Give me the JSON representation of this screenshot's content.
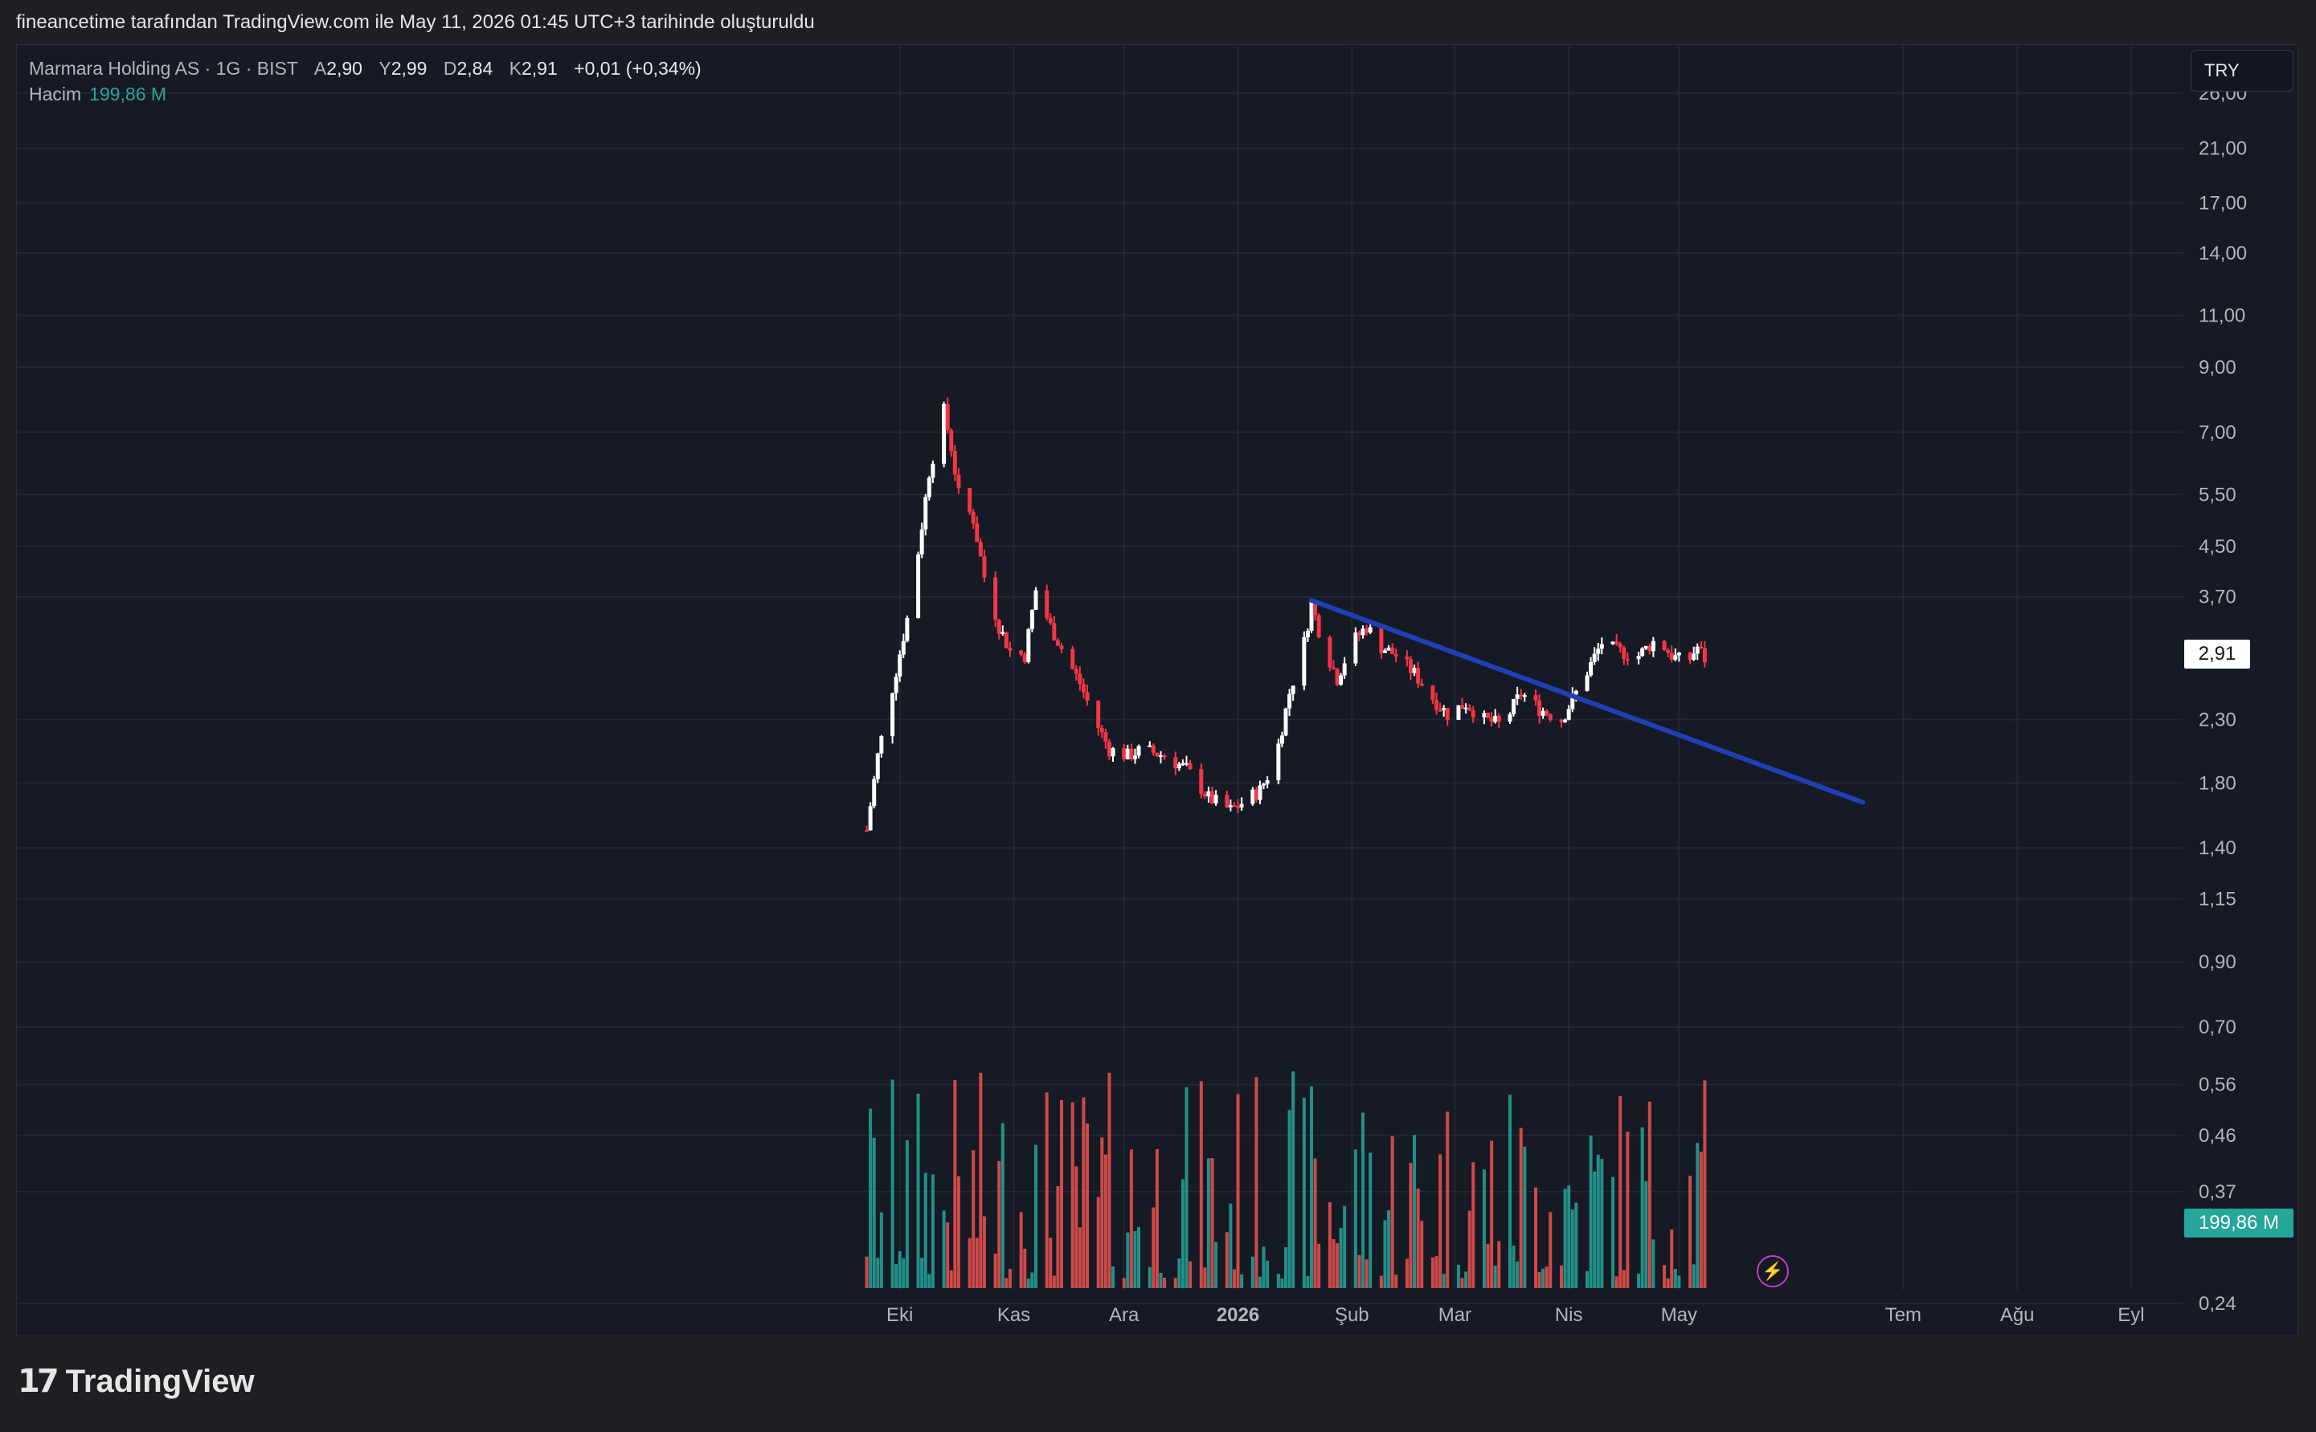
{
  "header": {
    "caption": "fineancetime tarafından TradingView.com ile May 11, 2026 01:45 UTC+3 tarihinde oluşturuldu"
  },
  "legend": {
    "symbol": "Marmara Holding AS · 1G · BIST",
    "open_label": "A",
    "open": "2,90",
    "high_label": "Y",
    "high": "2,99",
    "low_label": "D",
    "low": "2,84",
    "close_label": "K",
    "close": "2,91",
    "change": "+0,01 (+0,34%)",
    "volume_label": "Hacim",
    "volume": "199,86 M"
  },
  "currency": "TRY",
  "last_price_label": "2,91",
  "last_volume_label": "199,86 M",
  "footer": {
    "logo_text": "TradingView"
  },
  "colors": {
    "background": "#161a25",
    "up": "#ffffff",
    "down": "#f23645",
    "volume_up": "#26a69a",
    "volume_down": "#ef5350",
    "trendline": "#1f3fb5",
    "grid": "#232734",
    "axis_text": "#b2b5be"
  },
  "icons": [
    "bolt-icon",
    "tradingview-logo-icon"
  ],
  "chart_data": {
    "type": "candlestick",
    "scale": "log",
    "y_ticks": [
      "26,00",
      "21,00",
      "17,00",
      "14,00",
      "11,00",
      "9,00",
      "7,00",
      "5,50",
      "4,50",
      "3,70",
      "2,30",
      "1,80",
      "1,40",
      "1,15",
      "0,90",
      "0,70",
      "0,56",
      "0,46",
      "0,37",
      "0,24"
    ],
    "y_tick_values": [
      26,
      21,
      17,
      14,
      11,
      9,
      7,
      5.5,
      4.5,
      3.7,
      2.3,
      1.8,
      1.4,
      1.15,
      0.9,
      0.7,
      0.56,
      0.46,
      0.37,
      0.24
    ],
    "x_ticks": [
      "Eki",
      "Kas",
      "Ara",
      "2026",
      "Şub",
      "Mar",
      "Nis",
      "May",
      "Tem",
      "Ağu",
      "Eyl"
    ],
    "x_tick_dates": [
      "2025-10-01",
      "2025-11-01",
      "2025-12-01",
      "2026-01-01",
      "2026-02-01",
      "2026-03-01",
      "2026-04-01",
      "2026-05-01",
      "2026-07-01",
      "2026-08-01",
      "2026-09-01"
    ],
    "x_range": [
      "2025-02-03",
      "2026-09-15"
    ],
    "y_range": [
      0.22,
      30
    ],
    "price_path": [
      [
        "2025-09-22",
        1.5
      ],
      [
        "2025-09-25",
        2.0
      ],
      [
        "2025-09-29",
        2.6
      ],
      [
        "2025-10-03",
        3.4
      ],
      [
        "2025-10-06",
        4.4
      ],
      [
        "2025-10-09",
        6.0
      ],
      [
        "2025-10-13",
        7.6
      ],
      [
        "2025-10-15",
        6.6
      ],
      [
        "2025-10-17",
        5.5
      ],
      [
        "2025-10-21",
        5.0
      ],
      [
        "2025-10-24",
        4.0
      ],
      [
        "2025-10-28",
        3.3
      ],
      [
        "2025-10-31",
        3.0
      ],
      [
        "2025-11-04",
        2.95
      ],
      [
        "2025-11-07",
        3.8
      ],
      [
        "2025-11-11",
        3.3
      ],
      [
        "2025-11-15",
        2.95
      ],
      [
        "2025-11-19",
        2.65
      ],
      [
        "2025-11-23",
        2.3
      ],
      [
        "2025-11-27",
        2.05
      ],
      [
        "2025-12-02",
        2.0
      ],
      [
        "2025-12-06",
        2.05
      ],
      [
        "2025-12-12",
        2.0
      ],
      [
        "2025-12-18",
        1.9
      ],
      [
        "2025-12-24",
        1.7
      ],
      [
        "2025-12-30",
        1.62
      ],
      [
        "2026-01-03",
        1.68
      ],
      [
        "2026-01-07",
        1.75
      ],
      [
        "2026-01-11",
        1.95
      ],
      [
        "2026-01-15",
        2.55
      ],
      [
        "2026-01-19",
        3.1
      ],
      [
        "2026-01-21",
        3.6
      ],
      [
        "2026-01-24",
        3.1
      ],
      [
        "2026-01-28",
        2.7
      ],
      [
        "2026-02-01",
        3.1
      ],
      [
        "2026-02-05",
        3.3
      ],
      [
        "2026-02-09",
        3.05
      ],
      [
        "2026-02-13",
        2.95
      ],
      [
        "2026-02-18",
        2.75
      ],
      [
        "2026-02-23",
        2.5
      ],
      [
        "2026-02-27",
        2.35
      ],
      [
        "2026-03-04",
        2.45
      ],
      [
        "2026-03-09",
        2.3
      ],
      [
        "2026-03-14",
        2.25
      ],
      [
        "2026-03-19",
        2.55
      ],
      [
        "2026-03-24",
        2.4
      ],
      [
        "2026-03-30",
        2.3
      ],
      [
        "2026-04-03",
        2.55
      ],
      [
        "2026-04-07",
        2.85
      ],
      [
        "2026-04-10",
        3.1
      ],
      [
        "2026-04-14",
        3.0
      ],
      [
        "2026-04-20",
        2.95
      ],
      [
        "2026-04-25",
        3.15
      ],
      [
        "2026-04-29",
        2.95
      ],
      [
        "2026-05-03",
        2.85
      ],
      [
        "2026-05-06",
        3.05
      ],
      [
        "2026-05-08",
        2.91
      ]
    ],
    "trendline": {
      "start": [
        "2026-01-21",
        3.65
      ],
      "end": [
        "2026-06-20",
        1.67
      ]
    },
    "volume_range": [
      0,
      1
    ],
    "last_price": 2.91,
    "last_volume": "199,86 M"
  }
}
